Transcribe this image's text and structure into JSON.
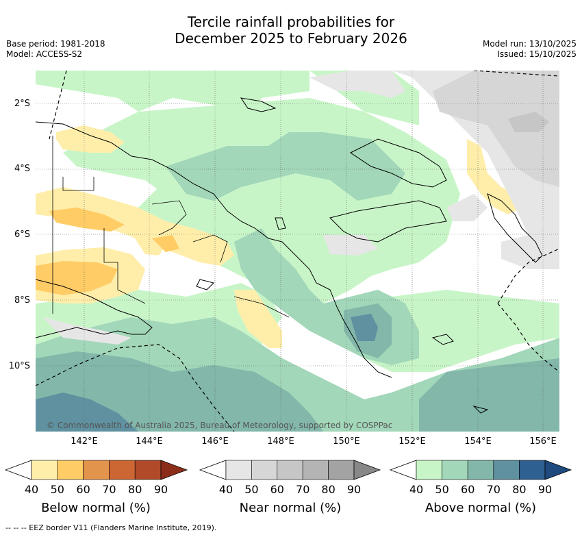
{
  "title_line1": "Tercile rainfall probabilities for",
  "title_line2": "December 2025 to February 2026",
  "base_period": "Base period: 1981-2018",
  "model": "Model: ACCESS-S2",
  "model_run": "Model run: 13/10/2025",
  "issued": "Issued: 15/10/2025",
  "lat_labels": [
    "2°S",
    "4°S",
    "6°S",
    "8°S",
    "10°S"
  ],
  "lon_labels": [
    "142°E",
    "144°E",
    "146°E",
    "148°E",
    "150°E",
    "152°E",
    "154°E",
    "156°E"
  ],
  "copyright": "© Commonwealth of Australia 2025, Bureau of Meteorology, supported by COSPPac",
  "footer": "--  --  -- EEZ border V11 (Flanders Marine Institute, 2019).",
  "colorbars": [
    {
      "title": "Below normal (%)",
      "ticks": [
        "40",
        "50",
        "60",
        "70",
        "80",
        "90"
      ],
      "colors": [
        "#ffeeaa",
        "#ffcc66",
        "#e3944c",
        "#cc6633",
        "#b04a29",
        "#8c2d1a"
      ]
    },
    {
      "title": "Near normal (%)",
      "ticks": [
        "40",
        "50",
        "60",
        "70",
        "80",
        "90"
      ],
      "colors": [
        "#e6e6e6",
        "#d6d6d6",
        "#c6c6c6",
        "#b4b4b4",
        "#a3a3a3",
        "#888888"
      ]
    },
    {
      "title": "Above normal (%)",
      "ticks": [
        "40",
        "50",
        "60",
        "70",
        "80",
        "90"
      ],
      "colors": [
        "#c8f5c8",
        "#a2d7b9",
        "#82b7aa",
        "#5f91a0",
        "#2e6091",
        "#1e4a7e"
      ]
    }
  ]
}
